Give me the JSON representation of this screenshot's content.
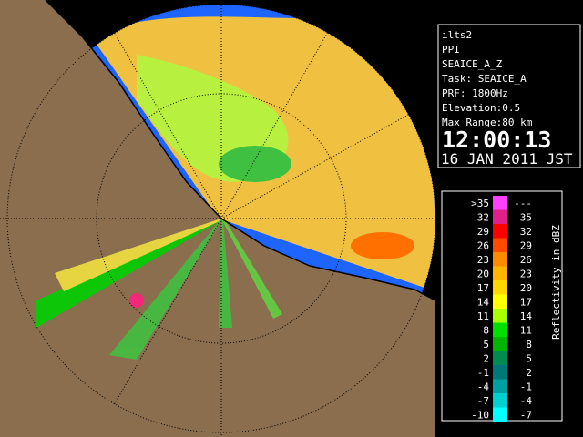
{
  "info": {
    "site": "ilts2",
    "product": "PPI",
    "task_name": "SEAICE_A_Z",
    "task": "Task: SEAICE_A",
    "prf": "PRF: 1800Hz",
    "elevation": "Elevation:0.5",
    "max_range": "Max Range:80 km",
    "time": "12:00:13",
    "date": "16 JAN 2011 JST"
  },
  "legend": {
    "title": "Reflectivity in dBZ",
    "rows": [
      {
        "low": ">35",
        "high": "---",
        "color": "#ff40ff"
      },
      {
        "low": "32",
        "high": "35",
        "color": "#e0208a"
      },
      {
        "low": "29",
        "high": "32",
        "color": "#ff0000"
      },
      {
        "low": "26",
        "high": "29",
        "color": "#ff4a00"
      },
      {
        "low": "23",
        "high": "26",
        "color": "#ff8c00"
      },
      {
        "low": "20",
        "high": "23",
        "color": "#ffb400"
      },
      {
        "low": "17",
        "high": "20",
        "color": "#ffd800"
      },
      {
        "low": "14",
        "high": "17",
        "color": "#ffff00"
      },
      {
        "low": "11",
        "high": "14",
        "color": "#a8ff00"
      },
      {
        "low": "8",
        "high": "11",
        "color": "#00e000"
      },
      {
        "low": "5",
        "high": "8",
        "color": "#00b400"
      },
      {
        "low": "2",
        "high": "5",
        "color": "#008c50"
      },
      {
        "low": "-1",
        "high": "2",
        "color": "#007878"
      },
      {
        "low": "-4",
        "high": "-1",
        "color": "#00a0a0"
      },
      {
        "low": "-7",
        "high": "-4",
        "color": "#00d0d0"
      },
      {
        "low": "-10",
        "high": "-7",
        "color": "#00ffff"
      }
    ]
  }
}
